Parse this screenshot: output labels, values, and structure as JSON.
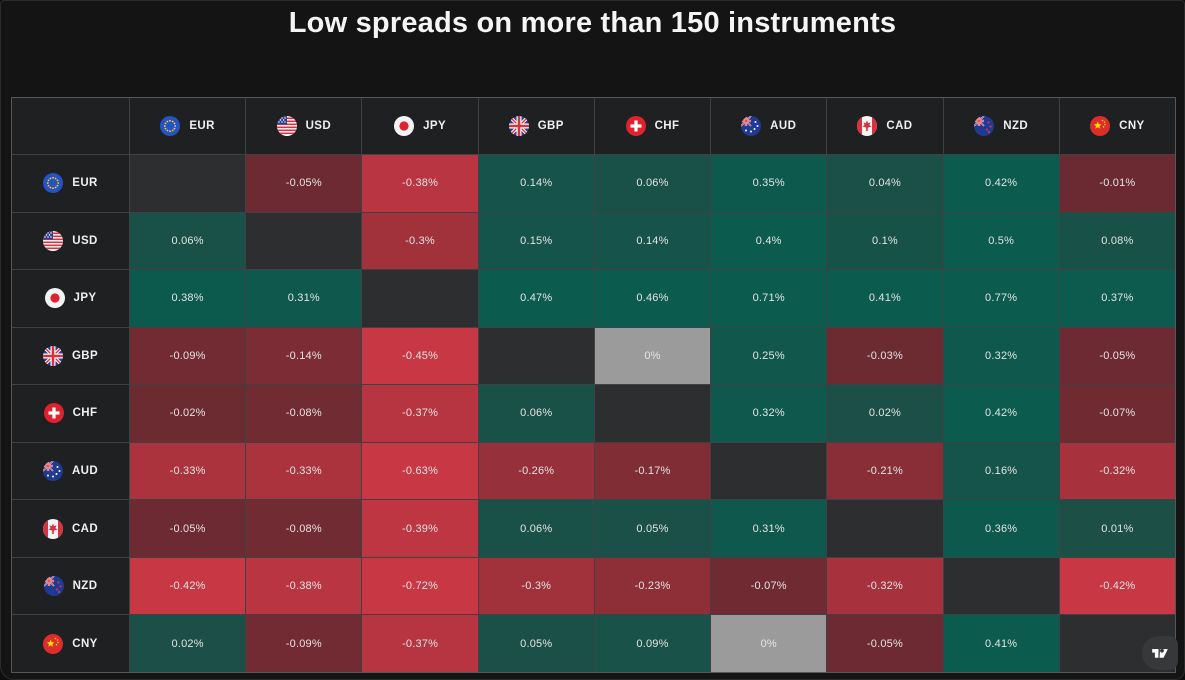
{
  "title": "Low spreads on more than 150 instruments",
  "chart_data": {
    "type": "heatmap",
    "title": "Low spreads on more than 150 instruments",
    "unit": "%",
    "columns": [
      "EUR",
      "USD",
      "JPY",
      "GBP",
      "CHF",
      "AUD",
      "CAD",
      "NZD",
      "CNY"
    ],
    "column_icons": [
      "eur-flag-icon",
      "usd-flag-icon",
      "jpy-flag-icon",
      "gbp-flag-icon",
      "chf-flag-icon",
      "aud-flag-icon",
      "cad-flag-icon",
      "nzd-flag-icon",
      "cny-flag-icon"
    ],
    "rows": [
      {
        "base": "EUR",
        "cells": [
          null,
          "-0.05%",
          "-0.38%",
          "0.14%",
          "0.06%",
          "0.35%",
          "0.04%",
          "0.42%",
          "-0.01%"
        ]
      },
      {
        "base": "USD",
        "cells": [
          "0.06%",
          null,
          "-0.3%",
          "0.15%",
          "0.14%",
          "0.4%",
          "0.1%",
          "0.5%",
          "0.08%"
        ]
      },
      {
        "base": "JPY",
        "cells": [
          "0.38%",
          "0.31%",
          null,
          "0.47%",
          "0.46%",
          "0.71%",
          "0.41%",
          "0.77%",
          "0.37%"
        ]
      },
      {
        "base": "GBP",
        "cells": [
          "-0.09%",
          "-0.14%",
          "-0.45%",
          null,
          "0%",
          "0.25%",
          "-0.03%",
          "0.32%",
          "-0.05%"
        ]
      },
      {
        "base": "CHF",
        "cells": [
          "-0.02%",
          "-0.08%",
          "-0.37%",
          "0.06%",
          null,
          "0.32%",
          "0.02%",
          "0.42%",
          "-0.07%"
        ]
      },
      {
        "base": "AUD",
        "cells": [
          "-0.33%",
          "-0.33%",
          "-0.63%",
          "-0.26%",
          "-0.17%",
          null,
          "-0.21%",
          "0.16%",
          "-0.32%"
        ]
      },
      {
        "base": "CAD",
        "cells": [
          "-0.05%",
          "-0.08%",
          "-0.39%",
          "0.06%",
          "0.05%",
          "0.31%",
          null,
          "0.36%",
          "0.01%"
        ]
      },
      {
        "base": "NZD",
        "cells": [
          "-0.42%",
          "-0.38%",
          "-0.72%",
          "-0.3%",
          "-0.23%",
          "-0.07%",
          "-0.32%",
          null,
          "-0.42%"
        ]
      },
      {
        "base": "CNY",
        "cells": [
          "0.02%",
          "-0.09%",
          "-0.37%",
          "0.05%",
          "0.09%",
          "0%",
          "-0.05%",
          "0.41%",
          null
        ]
      }
    ],
    "color_scale": {
      "positive_weak": "#1d4e46",
      "positive_strong": "#0b5b4f",
      "negative_weak": "#6b2a31",
      "negative_strong": "#c73744",
      "zero": "#9b9b9b",
      "empty_diagonal": "#2d2e30",
      "saturation_limit": 0.42
    }
  },
  "table": {
    "header_background": "#1f2021",
    "grid_line_color": "#3e4243",
    "page_background": "#141415"
  },
  "branding": {
    "logo_icon": "tradingview-logo"
  }
}
